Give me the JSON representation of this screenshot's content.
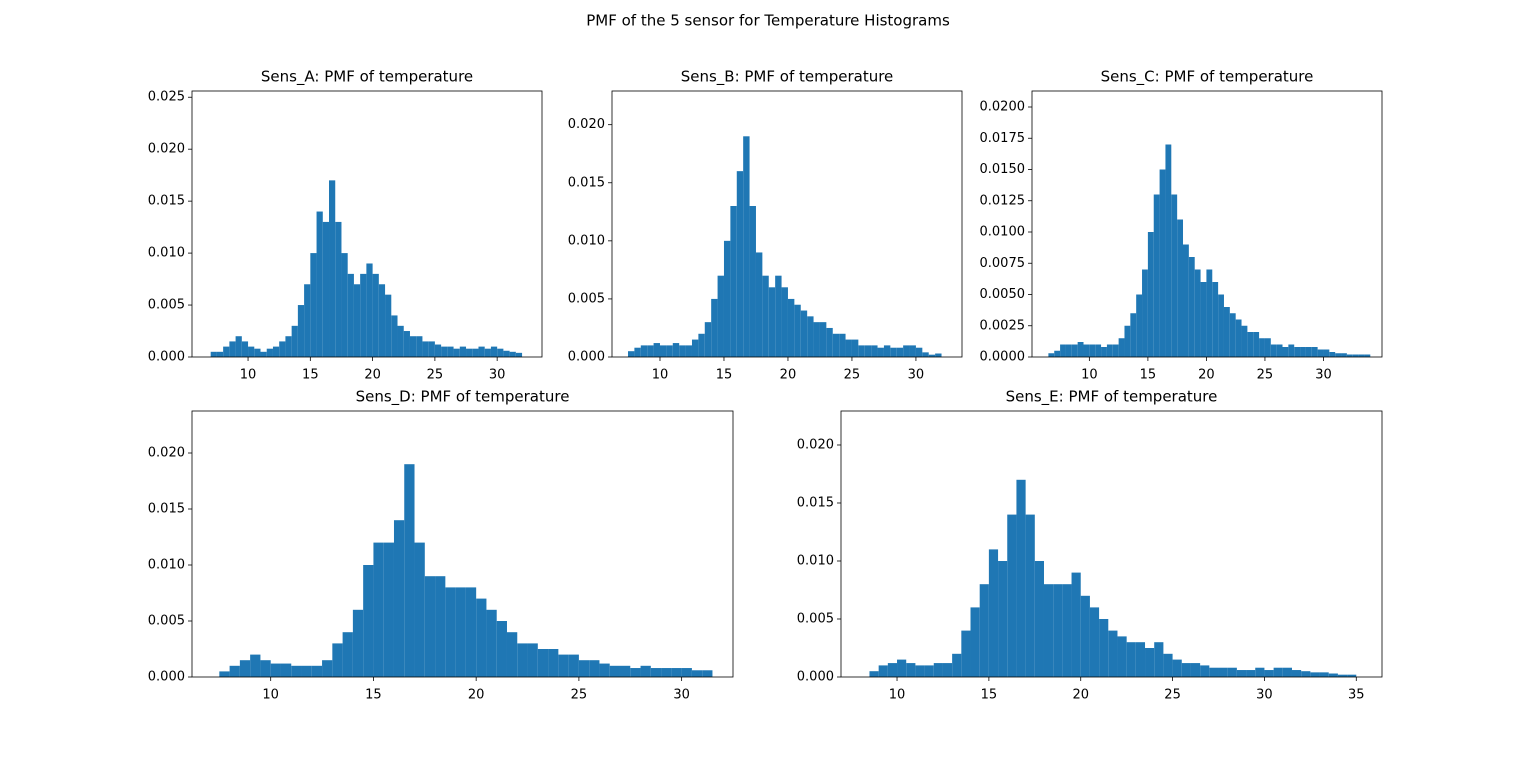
{
  "title": "PMF of the 5 sensor for Temperature Histograms",
  "chart_data": [
    {
      "type": "histogram",
      "title": "Sens_A: PMF of temperature",
      "color": "#1f77b4",
      "bins": [
        7,
        7.5,
        8,
        8.5,
        9,
        9.5,
        10,
        10.5,
        11,
        11.5,
        12,
        12.5,
        13,
        13.5,
        14,
        14.5,
        15,
        15.5,
        16,
        16.5,
        17,
        17.5,
        18,
        18.5,
        19,
        19.5,
        20,
        20.5,
        21,
        21.5,
        22,
        22.5,
        23,
        23.5,
        24,
        24.5,
        25,
        25.5,
        26,
        26.5,
        27,
        27.5,
        28,
        28.5,
        29,
        29.5,
        30,
        30.5,
        31,
        31.5,
        32
      ],
      "values": [
        0.0005,
        0.0005,
        0.001,
        0.0015,
        0.002,
        0.0015,
        0.001,
        0.0008,
        0.0005,
        0.0008,
        0.001,
        0.0015,
        0.002,
        0.003,
        0.005,
        0.007,
        0.01,
        0.014,
        0.013,
        0.017,
        0.013,
        0.01,
        0.008,
        0.007,
        0.008,
        0.009,
        0.008,
        0.007,
        0.006,
        0.004,
        0.003,
        0.0025,
        0.002,
        0.002,
        0.0015,
        0.0015,
        0.0012,
        0.001,
        0.001,
        0.0008,
        0.001,
        0.0008,
        0.0008,
        0.001,
        0.0008,
        0.001,
        0.0008,
        0.0006,
        0.0005,
        0.0004
      ],
      "xlim": [
        5.5,
        33.6
      ],
      "xticks": [
        10,
        15,
        20,
        25,
        30
      ],
      "ylim": [
        0,
        0.0256
      ],
      "yticks": [
        {
          "value": 0,
          "label": "0.000"
        },
        {
          "value": 0.005,
          "label": "0.005"
        },
        {
          "value": 0.01,
          "label": "0.010"
        },
        {
          "value": 0.015,
          "label": "0.015"
        },
        {
          "value": 0.02,
          "label": "0.020"
        },
        {
          "value": 0.025,
          "label": "0.025"
        }
      ]
    },
    {
      "type": "histogram",
      "title": "Sens_B: PMF of temperature",
      "color": "#1f77b4",
      "bins": [
        7.5,
        8,
        8.5,
        9,
        9.5,
        10,
        10.5,
        11,
        11.5,
        12,
        12.5,
        13,
        13.5,
        14,
        14.5,
        15,
        15.5,
        16,
        16.5,
        17,
        17.5,
        18,
        18.5,
        19,
        19.5,
        20,
        20.5,
        21,
        21.5,
        22,
        22.5,
        23,
        23.5,
        24,
        24.5,
        25,
        25.5,
        26,
        26.5,
        27,
        27.5,
        28,
        28.5,
        29,
        29.5,
        30,
        30.5,
        31,
        31.5,
        32
      ],
      "values": [
        0.0005,
        0.0008,
        0.001,
        0.001,
        0.0012,
        0.001,
        0.001,
        0.0012,
        0.001,
        0.001,
        0.0015,
        0.002,
        0.003,
        0.005,
        0.007,
        0.01,
        0.013,
        0.016,
        0.019,
        0.013,
        0.009,
        0.007,
        0.006,
        0.007,
        0.006,
        0.005,
        0.0045,
        0.004,
        0.0035,
        0.003,
        0.003,
        0.0025,
        0.002,
        0.002,
        0.0015,
        0.0015,
        0.001,
        0.001,
        0.001,
        0.0008,
        0.001,
        0.0008,
        0.0008,
        0.001,
        0.001,
        0.0008,
        0.0004,
        0.0002,
        0.0003
      ],
      "xlim": [
        6.25,
        33.6
      ],
      "xticks": [
        10,
        15,
        20,
        25,
        30
      ],
      "ylim": [
        0,
        0.0229
      ],
      "yticks": [
        {
          "value": 0,
          "label": "0.000"
        },
        {
          "value": 0.005,
          "label": "0.005"
        },
        {
          "value": 0.01,
          "label": "0.010"
        },
        {
          "value": 0.015,
          "label": "0.015"
        },
        {
          "value": 0.02,
          "label": "0.020"
        }
      ]
    },
    {
      "type": "histogram",
      "title": "Sens_C: PMF of temperature",
      "color": "#1f77b4",
      "bins": [
        6.5,
        7,
        7.5,
        8,
        8.5,
        9,
        9.5,
        10,
        10.5,
        11,
        11.5,
        12,
        12.5,
        13,
        13.5,
        14,
        14.5,
        15,
        15.5,
        16,
        16.5,
        17,
        17.5,
        18,
        18.5,
        19,
        19.5,
        20,
        20.5,
        21,
        21.5,
        22,
        22.5,
        23,
        23.5,
        24,
        24.5,
        25,
        25.5,
        26,
        26.5,
        27,
        27.5,
        28,
        28.5,
        29,
        29.5,
        30,
        30.5,
        31,
        31.5,
        32,
        32.5,
        33,
        33.5,
        34
      ],
      "values": [
        0.0003,
        0.0005,
        0.001,
        0.001,
        0.001,
        0.0012,
        0.001,
        0.001,
        0.001,
        0.0008,
        0.001,
        0.001,
        0.0015,
        0.0025,
        0.0035,
        0.005,
        0.007,
        0.01,
        0.013,
        0.015,
        0.017,
        0.013,
        0.011,
        0.009,
        0.008,
        0.007,
        0.006,
        0.007,
        0.006,
        0.005,
        0.004,
        0.0035,
        0.003,
        0.0025,
        0.002,
        0.002,
        0.0015,
        0.0015,
        0.001,
        0.001,
        0.0008,
        0.001,
        0.0008,
        0.0008,
        0.0008,
        0.0008,
        0.0006,
        0.0006,
        0.0004,
        0.0003,
        0.0003,
        0.0002,
        0.0002,
        0.0002,
        0.0002
      ],
      "xlim": [
        5.1,
        35.0
      ],
      "xticks": [
        10,
        15,
        20,
        25,
        30
      ],
      "ylim": [
        0,
        0.02128
      ],
      "yticks": [
        {
          "value": 0,
          "label": "0.0000"
        },
        {
          "value": 0.0025,
          "label": "0.0025"
        },
        {
          "value": 0.005,
          "label": "0.0050"
        },
        {
          "value": 0.0075,
          "label": "0.0075"
        },
        {
          "value": 0.01,
          "label": "0.0100"
        },
        {
          "value": 0.0125,
          "label": "0.0125"
        },
        {
          "value": 0.015,
          "label": "0.0150"
        },
        {
          "value": 0.0175,
          "label": "0.0175"
        },
        {
          "value": 0.02,
          "label": "0.0200"
        }
      ]
    },
    {
      "type": "histogram",
      "title": "Sens_D: PMF of temperature",
      "color": "#1f77b4",
      "bins": [
        7.5,
        8,
        8.5,
        9,
        9.5,
        10,
        10.5,
        11,
        11.5,
        12,
        12.5,
        13,
        13.5,
        14,
        14.5,
        15,
        15.5,
        16,
        16.5,
        17,
        17.5,
        18,
        18.5,
        19,
        19.5,
        20,
        20.5,
        21,
        21.5,
        22,
        22.5,
        23,
        23.5,
        24,
        24.5,
        25,
        25.5,
        26,
        26.5,
        27,
        27.5,
        28,
        28.5,
        29,
        29.5,
        30,
        30.5,
        31,
        31.5
      ],
      "values": [
        0.0005,
        0.001,
        0.0015,
        0.002,
        0.0015,
        0.0012,
        0.0012,
        0.001,
        0.001,
        0.001,
        0.0015,
        0.003,
        0.004,
        0.006,
        0.01,
        0.012,
        0.012,
        0.014,
        0.019,
        0.012,
        0.009,
        0.009,
        0.008,
        0.008,
        0.008,
        0.007,
        0.006,
        0.005,
        0.004,
        0.003,
        0.003,
        0.0025,
        0.0025,
        0.002,
        0.002,
        0.0015,
        0.0015,
        0.0012,
        0.001,
        0.001,
        0.0008,
        0.001,
        0.0008,
        0.0008,
        0.0008,
        0.0008,
        0.0006,
        0.0006
      ],
      "xlim": [
        6.17,
        32.5
      ],
      "xticks": [
        10,
        15,
        20,
        25,
        30
      ],
      "ylim": [
        0,
        0.02375
      ],
      "yticks": [
        {
          "value": 0,
          "label": "0.000"
        },
        {
          "value": 0.005,
          "label": "0.005"
        },
        {
          "value": 0.01,
          "label": "0.010"
        },
        {
          "value": 0.015,
          "label": "0.015"
        },
        {
          "value": 0.02,
          "label": "0.020"
        }
      ]
    },
    {
      "type": "histogram",
      "title": "Sens_E: PMF of temperature",
      "color": "#1f77b4",
      "bins": [
        8.5,
        9,
        9.5,
        10,
        10.5,
        11,
        11.5,
        12,
        12.5,
        13,
        13.5,
        14,
        14.5,
        15,
        15.5,
        16,
        16.5,
        17,
        17.5,
        18,
        18.5,
        19,
        19.5,
        20,
        20.5,
        21,
        21.5,
        22,
        22.5,
        23,
        23.5,
        24,
        24.5,
        25,
        25.5,
        26,
        26.5,
        27,
        27.5,
        28,
        28.5,
        29,
        29.5,
        30,
        30.5,
        31,
        31.5,
        32,
        32.5,
        33,
        33.5,
        34,
        34.5,
        35
      ],
      "values": [
        0.0005,
        0.001,
        0.0012,
        0.0015,
        0.0012,
        0.001,
        0.001,
        0.0012,
        0.0012,
        0.002,
        0.004,
        0.006,
        0.008,
        0.011,
        0.01,
        0.014,
        0.017,
        0.014,
        0.01,
        0.008,
        0.008,
        0.008,
        0.009,
        0.007,
        0.006,
        0.005,
        0.004,
        0.0035,
        0.003,
        0.003,
        0.0025,
        0.003,
        0.002,
        0.0015,
        0.0012,
        0.0012,
        0.001,
        0.0008,
        0.0008,
        0.0008,
        0.0006,
        0.0006,
        0.0008,
        0.0006,
        0.0008,
        0.0008,
        0.0006,
        0.0005,
        0.0004,
        0.0004,
        0.0003,
        0.0002,
        0.0002
      ],
      "xlim": [
        6.95,
        36.4
      ],
      "xticks": [
        10,
        15,
        20,
        25,
        30,
        35
      ],
      "ylim": [
        0,
        0.02293
      ],
      "yticks": [
        {
          "value": 0,
          "label": "0.000"
        },
        {
          "value": 0.005,
          "label": "0.005"
        },
        {
          "value": 0.01,
          "label": "0.010"
        },
        {
          "value": 0.015,
          "label": "0.015"
        },
        {
          "value": 0.02,
          "label": "0.020"
        }
      ]
    }
  ]
}
